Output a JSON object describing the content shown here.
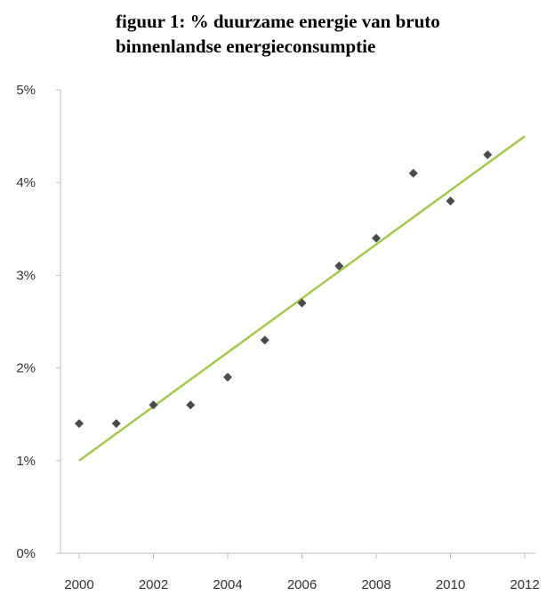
{
  "chart_data": {
    "type": "scatter",
    "title_lines": [
      "figuur 1: % duurzame energie van bruto",
      "binnenlandse energieconsumptie"
    ],
    "xlabel": "",
    "ylabel": "",
    "x_ticks": [
      "2000",
      "2002",
      "2004",
      "2006",
      "2008",
      "2010",
      "2012"
    ],
    "y_ticks": [
      "0%",
      "1%",
      "2%",
      "3%",
      "4%",
      "5%"
    ],
    "xlim": [
      2000,
      2012
    ],
    "ylim": [
      0,
      5
    ],
    "grid": false,
    "legend": "none",
    "series": [
      {
        "x": [
          2000,
          2001,
          2002,
          2003,
          2004,
          2005,
          2006,
          2007,
          2008,
          2009,
          2010,
          2011
        ],
        "y": [
          1.4,
          1.4,
          1.6,
          1.6,
          1.9,
          2.3,
          2.7,
          3.1,
          3.4,
          4.1,
          3.8,
          4.3
        ],
        "marker": "diamond",
        "color": "#4a4a4a"
      }
    ],
    "trendline": {
      "x": [
        2000,
        2012
      ],
      "y": [
        1.0,
        4.5
      ],
      "color": "#a6c64c"
    },
    "axis_color": "#bdbdbd"
  }
}
